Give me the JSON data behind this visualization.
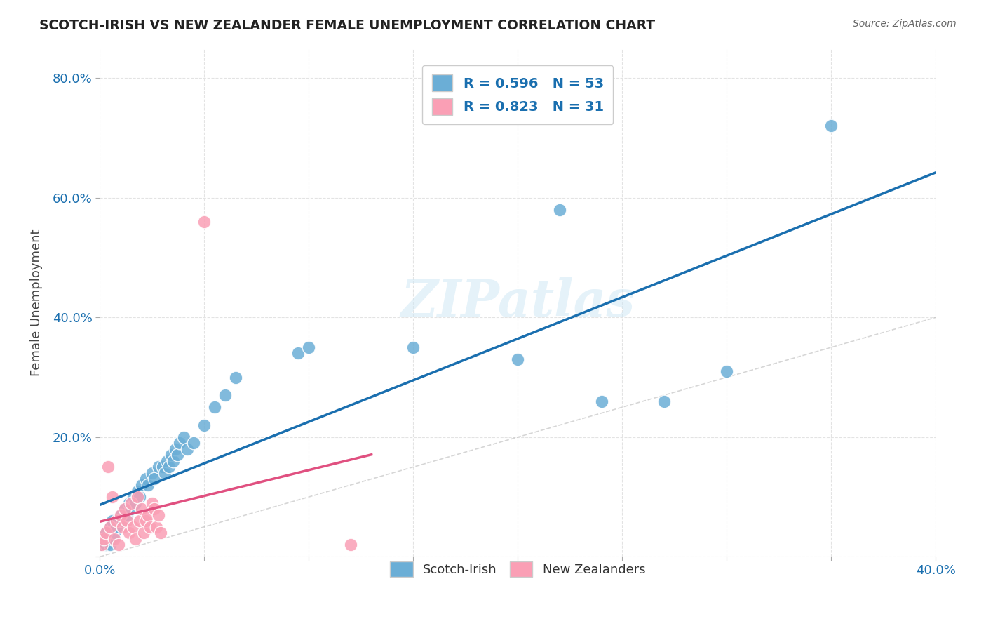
{
  "title": "SCOTCH-IRISH VS NEW ZEALANDER FEMALE UNEMPLOYMENT CORRELATION CHART",
  "source": "Source: ZipAtlas.com",
  "xlabel": "",
  "ylabel": "Female Unemployment",
  "xlim": [
    0.0,
    0.4
  ],
  "ylim": [
    0.0,
    0.85
  ],
  "watermark": "ZIPatlas",
  "legend_r1": "R = 0.596",
  "legend_n1": "N = 53",
  "legend_r2": "R = 0.823",
  "legend_n2": "N = 31",
  "scotch_irish_color": "#6baed6",
  "new_zealander_color": "#fa9fb5",
  "trend_blue": "#1a6faf",
  "trend_pink": "#e05080",
  "background_color": "#ffffff",
  "grid_color": "#dddddd",
  "scotch_irish_x": [
    0.001,
    0.002,
    0.003,
    0.003,
    0.004,
    0.005,
    0.005,
    0.006,
    0.006,
    0.007,
    0.008,
    0.009,
    0.01,
    0.011,
    0.012,
    0.013,
    0.014,
    0.015,
    0.016,
    0.017,
    0.018,
    0.019,
    0.02,
    0.022,
    0.023,
    0.025,
    0.026,
    0.028,
    0.03,
    0.031,
    0.032,
    0.033,
    0.034,
    0.035,
    0.036,
    0.037,
    0.038,
    0.04,
    0.042,
    0.045,
    0.05,
    0.055,
    0.06,
    0.065,
    0.095,
    0.1,
    0.15,
    0.2,
    0.22,
    0.24,
    0.27,
    0.3,
    0.35
  ],
  "scotch_irish_y": [
    0.02,
    0.03,
    0.02,
    0.04,
    0.03,
    0.05,
    0.02,
    0.06,
    0.03,
    0.04,
    0.05,
    0.06,
    0.07,
    0.06,
    0.08,
    0.07,
    0.09,
    0.08,
    0.1,
    0.09,
    0.11,
    0.1,
    0.12,
    0.13,
    0.12,
    0.14,
    0.13,
    0.15,
    0.15,
    0.14,
    0.16,
    0.15,
    0.17,
    0.16,
    0.18,
    0.17,
    0.19,
    0.2,
    0.18,
    0.19,
    0.22,
    0.25,
    0.27,
    0.3,
    0.34,
    0.35,
    0.35,
    0.33,
    0.58,
    0.26,
    0.26,
    0.31,
    0.72
  ],
  "new_zealander_x": [
    0.001,
    0.002,
    0.003,
    0.004,
    0.005,
    0.006,
    0.007,
    0.008,
    0.009,
    0.01,
    0.011,
    0.012,
    0.013,
    0.014,
    0.015,
    0.016,
    0.017,
    0.018,
    0.019,
    0.02,
    0.021,
    0.022,
    0.023,
    0.024,
    0.025,
    0.026,
    0.027,
    0.028,
    0.029,
    0.05,
    0.12
  ],
  "new_zealander_y": [
    0.02,
    0.03,
    0.04,
    0.15,
    0.05,
    0.1,
    0.03,
    0.06,
    0.02,
    0.07,
    0.05,
    0.08,
    0.06,
    0.04,
    0.09,
    0.05,
    0.03,
    0.1,
    0.06,
    0.08,
    0.04,
    0.06,
    0.07,
    0.05,
    0.09,
    0.08,
    0.05,
    0.07,
    0.04,
    0.56,
    0.02
  ]
}
